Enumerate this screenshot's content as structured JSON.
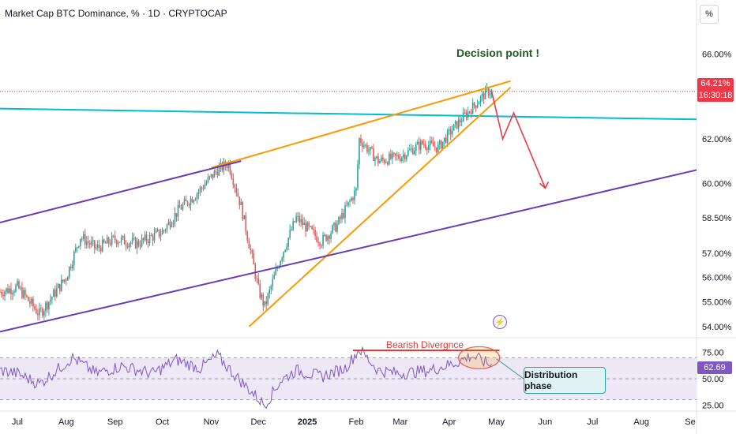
{
  "header": {
    "title": "Market Cap BTC Dominance, % · 1D · CRYPTOCAP",
    "unit_button": "%"
  },
  "annotations": {
    "decision_point": "Decision point !",
    "bearish_divergence": "Bearish Divergnce",
    "distribution_phase": "Distribution phase"
  },
  "price_tag": {
    "value": "64.21%",
    "countdown": "16:30:18"
  },
  "rsi_tag": "62.69",
  "icons": {
    "events": "lightning-icon"
  },
  "colors": {
    "up": "#26a69a",
    "down": "#ef5350",
    "trendline": "#00bcd4",
    "wedge": "#ff9800",
    "channel": "#673ab7",
    "arrow": "#f23645",
    "rsi": "#7e57c2",
    "band": "#ede7f6"
  },
  "chart_data": {
    "type": "candlestick",
    "price_axis": {
      "ticks": [
        "66.00%",
        "62.00%",
        "60.00%",
        "58.50%",
        "57.00%",
        "56.00%",
        "55.00%",
        "54.00%"
      ],
      "tick_values": [
        66.0,
        62.0,
        60.0,
        58.5,
        57.0,
        56.0,
        55.0,
        54.0
      ],
      "scale": "log"
    },
    "time_axis": {
      "labels": [
        "Jul",
        "Aug",
        "Sep",
        "Oct",
        "Nov",
        "Dec",
        "2025",
        "Feb",
        "Mar",
        "Apr",
        "May",
        "Jun",
        "Jul",
        "Aug",
        "Se"
      ]
    },
    "price_path": [
      [
        "2024-06-20",
        55.4
      ],
      [
        "2024-07-01",
        55.6
      ],
      [
        "2024-07-15",
        54.5
      ],
      [
        "2024-08-01",
        56.0
      ],
      [
        "2024-08-10",
        57.7
      ],
      [
        "2024-08-20",
        57.2
      ],
      [
        "2024-09-01",
        57.6
      ],
      [
        "2024-09-15",
        57.4
      ],
      [
        "2024-10-01",
        57.9
      ],
      [
        "2024-10-12",
        58.9
      ],
      [
        "2024-10-22",
        59.5
      ],
      [
        "2024-11-05",
        60.6
      ],
      [
        "2024-11-12",
        60.9
      ],
      [
        "2024-11-20",
        59.0
      ],
      [
        "2024-12-01",
        55.5
      ],
      [
        "2024-12-05",
        54.8
      ],
      [
        "2024-12-15",
        56.8
      ],
      [
        "2024-12-25",
        58.5
      ],
      [
        "2025-01-10",
        57.5
      ],
      [
        "2025-01-20",
        58.2
      ],
      [
        "2025-02-01",
        59.7
      ],
      [
        "2025-02-03",
        62.0
      ],
      [
        "2025-02-15",
        61.0
      ],
      [
        "2025-03-01",
        61.2
      ],
      [
        "2025-03-15",
        61.8
      ],
      [
        "2025-03-25",
        61.6
      ],
      [
        "2025-04-05",
        62.6
      ],
      [
        "2025-04-15",
        63.4
      ],
      [
        "2025-04-25",
        64.2
      ],
      [
        "2025-04-28",
        64.21
      ]
    ],
    "projection": [
      [
        "2025-04-28",
        64.21
      ],
      [
        "2025-05-05",
        62.0
      ],
      [
        "2025-05-12",
        63.2
      ],
      [
        "2025-06-01",
        59.8
      ]
    ],
    "lines": [
      {
        "kind": "descending-resistance",
        "points": [
          [
            "2024-06-20",
            63.4
          ],
          [
            "2025-09-05",
            62.9
          ]
        ]
      },
      {
        "kind": "wedge-upper",
        "points": [
          [
            "2024-11-01",
            60.7
          ],
          [
            "2025-05-10",
            64.7
          ]
        ]
      },
      {
        "kind": "wedge-lower",
        "points": [
          [
            "2024-11-25",
            54.0
          ],
          [
            "2025-05-10",
            64.4
          ]
        ]
      },
      {
        "kind": "channel-upper",
        "points": [
          [
            "2024-06-20",
            58.3
          ],
          [
            "2024-11-20",
            61.0
          ]
        ]
      },
      {
        "kind": "channel-lower",
        "points": [
          [
            "2024-06-20",
            53.8
          ],
          [
            "2025-09-05",
            60.6
          ]
        ]
      }
    ],
    "last_value": 64.21
  },
  "rsi_data": {
    "axis_ticks": [
      "75.00",
      "50.00",
      "25.00"
    ],
    "tick_values": [
      75,
      50,
      25
    ],
    "band": [
      30,
      70
    ],
    "path": [
      [
        "2024-06-20",
        58
      ],
      [
        "2024-07-01",
        55
      ],
      [
        "2024-07-15",
        45
      ],
      [
        "2024-08-05",
        70
      ],
      [
        "2024-08-20",
        55
      ],
      [
        "2024-09-05",
        62
      ],
      [
        "2024-09-25",
        55
      ],
      [
        "2024-10-10",
        68
      ],
      [
        "2024-10-25",
        60
      ],
      [
        "2024-11-05",
        72
      ],
      [
        "2024-11-15",
        55
      ],
      [
        "2024-11-25",
        40
      ],
      [
        "2024-12-05",
        25
      ],
      [
        "2024-12-15",
        48
      ],
      [
        "2024-12-25",
        58
      ],
      [
        "2025-01-10",
        52
      ],
      [
        "2025-01-25",
        60
      ],
      [
        "2025-02-03",
        78
      ],
      [
        "2025-02-15",
        58
      ],
      [
        "2025-03-01",
        55
      ],
      [
        "2025-03-20",
        58
      ],
      [
        "2025-04-05",
        65
      ],
      [
        "2025-04-15",
        72
      ],
      [
        "2025-04-28",
        62.69
      ]
    ],
    "last_value": 62.69
  }
}
